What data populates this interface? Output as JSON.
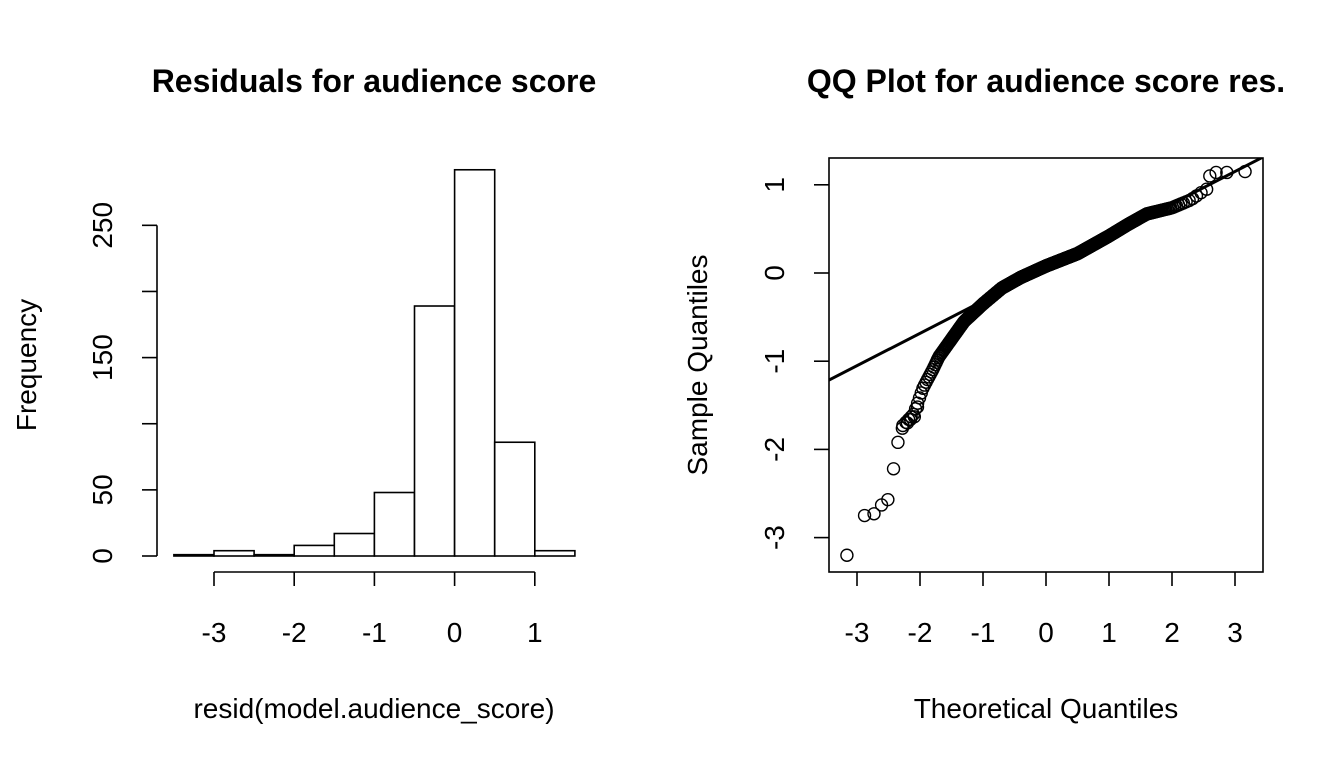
{
  "chart_data": [
    {
      "type": "bar",
      "title": "Residuals for audience score",
      "xlabel": "resid(model.audience_score)",
      "ylabel": "Frequency",
      "xlim": [
        -3.5,
        1.5
      ],
      "ylim": [
        0,
        300
      ],
      "bins": [
        {
          "x0": -3.5,
          "x1": -3.0,
          "count": 1
        },
        {
          "x0": -3.0,
          "x1": -2.5,
          "count": 4
        },
        {
          "x0": -2.5,
          "x1": -2.0,
          "count": 1
        },
        {
          "x0": -2.0,
          "x1": -1.5,
          "count": 8
        },
        {
          "x0": -1.5,
          "x1": -1.0,
          "count": 17
        },
        {
          "x0": -1.0,
          "x1": -0.5,
          "count": 48
        },
        {
          "x0": -0.5,
          "x1": 0.0,
          "count": 189
        },
        {
          "x0": 0.0,
          "x1": 0.5,
          "count": 292
        },
        {
          "x0": 0.5,
          "x1": 1.0,
          "count": 86
        },
        {
          "x0": 1.0,
          "x1": 1.5,
          "count": 4
        }
      ],
      "x_ticks": [
        -3,
        -2,
        -1,
        0,
        1
      ],
      "x_tick_labels": [
        "-3",
        "-2",
        "-1",
        "0",
        "1"
      ],
      "y_ticks": [
        0,
        50,
        100,
        150,
        200,
        250
      ],
      "y_tick_labels": [
        "0",
        "50",
        "",
        "150",
        "",
        "250"
      ]
    },
    {
      "type": "scatter",
      "title": "QQ Plot for audience score res.",
      "xlabel": "Theoretical Quantiles",
      "ylabel": "Sample Quantiles",
      "xlim": [
        -3.4,
        3.4
      ],
      "ylim": [
        -3.4,
        1.3
      ],
      "x_ticks": [
        -3,
        -2,
        -1,
        0,
        1,
        2,
        3
      ],
      "x_tick_labels": [
        "-3",
        "-2",
        "-1",
        "0",
        "1",
        "2",
        "3"
      ],
      "y_ticks": [
        -3,
        -2,
        -1,
        0,
        1
      ],
      "y_tick_labels": [
        "-3",
        "-2",
        "-1",
        "0",
        "1"
      ],
      "reference_line": {
        "slope": 0.367,
        "intercept": 0.05
      },
      "quantile_curve": [
        [
          -2.3,
          -1.75
        ],
        [
          -2.1,
          -1.6
        ],
        [
          -1.95,
          -1.3
        ],
        [
          -1.8,
          -1.1
        ],
        [
          -1.7,
          -0.95
        ],
        [
          -1.5,
          -0.75
        ],
        [
          -1.3,
          -0.55
        ],
        [
          -1.0,
          -0.35
        ],
        [
          -0.7,
          -0.17
        ],
        [
          -0.4,
          -0.05
        ],
        [
          0.0,
          0.08
        ],
        [
          0.5,
          0.22
        ],
        [
          1.0,
          0.42
        ],
        [
          1.3,
          0.55
        ],
        [
          1.6,
          0.67
        ],
        [
          2.0,
          0.74
        ],
        [
          2.3,
          0.83
        ],
        [
          2.5,
          0.93
        ]
      ],
      "tail_points": [
        [
          -3.16,
          -3.2
        ],
        [
          -2.88,
          -2.75
        ],
        [
          -2.73,
          -2.73
        ],
        [
          -2.61,
          -2.63
        ],
        [
          -2.51,
          -2.57
        ],
        [
          -2.42,
          -2.22
        ],
        [
          -2.35,
          -1.92
        ],
        [
          -2.28,
          -1.76
        ],
        [
          -2.2,
          -1.7
        ],
        [
          -2.15,
          -1.66
        ],
        [
          -2.09,
          -1.63
        ],
        [
          -2.04,
          -1.52
        ],
        [
          2.55,
          0.95
        ],
        [
          2.6,
          1.1
        ],
        [
          2.7,
          1.14
        ],
        [
          2.87,
          1.14
        ],
        [
          3.16,
          1.15
        ]
      ],
      "sample_size": 650
    }
  ]
}
